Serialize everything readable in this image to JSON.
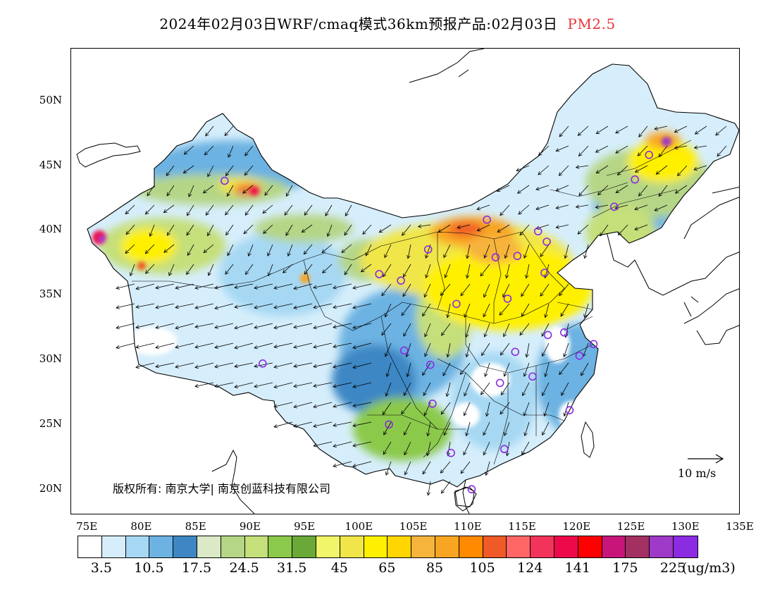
{
  "title": {
    "main": "2024年02月03日WRF/cmaq模式36km预报产品:02月03日",
    "pollutant": "PM2.5"
  },
  "axes": {
    "lat_labels": [
      "50N",
      "45N",
      "40N",
      "35N",
      "30N",
      "25N",
      "20N"
    ],
    "lat_values": [
      50,
      45,
      40,
      35,
      30,
      25,
      20
    ],
    "lon_labels": [
      "75E",
      "80E",
      "85E",
      "90E",
      "95E",
      "100E",
      "105E",
      "110E",
      "115E",
      "120E",
      "125E",
      "130E",
      "135E"
    ],
    "lon_values": [
      75,
      80,
      85,
      90,
      95,
      100,
      105,
      110,
      115,
      120,
      125,
      130,
      135
    ],
    "lon_range": [
      73.5,
      135
    ],
    "lat_range": [
      18,
      54
    ]
  },
  "copyright": "版权所有: 南京大学| 南京创蓝科技有限公司",
  "wind_scale": {
    "label": "10 m/s"
  },
  "colorbar": {
    "colors": [
      "#ffffff",
      "#d6eefb",
      "#a6d8f3",
      "#6cb2e2",
      "#3e87c4",
      "#dbe9c6",
      "#b5d686",
      "#c5df7a",
      "#8bc94b",
      "#6aa838",
      "#f1f56a",
      "#f0e64a",
      "#fff000",
      "#ffd600",
      "#f7b43d",
      "#f8a523",
      "#ff8a00",
      "#f05a28",
      "#ff6767",
      "#f2345a",
      "#ee0a4a",
      "#ff0000",
      "#c8157a",
      "#a23060",
      "#9e39c8",
      "#8b2be2"
    ],
    "labels": [
      "3.5",
      "10.5",
      "17.5",
      "24.5",
      "31.5",
      "45",
      "65",
      "85",
      "105",
      "124",
      "141",
      "175",
      "225"
    ],
    "unit": "(ug/m3)"
  },
  "stations": [
    [
      87.6,
      43.8
    ],
    [
      91.1,
      29.7
    ],
    [
      101.8,
      36.6
    ],
    [
      103.8,
      36.1
    ],
    [
      106.3,
      38.5
    ],
    [
      106.5,
      29.6
    ],
    [
      104.1,
      30.7
    ],
    [
      106.7,
      26.6
    ],
    [
      102.7,
      25.0
    ],
    [
      108.4,
      22.8
    ],
    [
      110.3,
      20.0
    ],
    [
      113.3,
      23.1
    ],
    [
      112.9,
      28.2
    ],
    [
      114.3,
      30.6
    ],
    [
      115.9,
      28.7
    ],
    [
      119.3,
      26.1
    ],
    [
      120.2,
      30.3
    ],
    [
      121.5,
      31.2
    ],
    [
      117.3,
      31.9
    ],
    [
      118.8,
      32.1
    ],
    [
      113.6,
      34.7
    ],
    [
      108.9,
      34.3
    ],
    [
      112.5,
      37.9
    ],
    [
      114.5,
      38.0
    ],
    [
      117.0,
      36.7
    ],
    [
      117.2,
      39.1
    ],
    [
      116.4,
      39.9
    ],
    [
      111.7,
      40.8
    ],
    [
      123.4,
      41.8
    ],
    [
      125.3,
      43.9
    ],
    [
      126.6,
      45.8
    ]
  ]
}
